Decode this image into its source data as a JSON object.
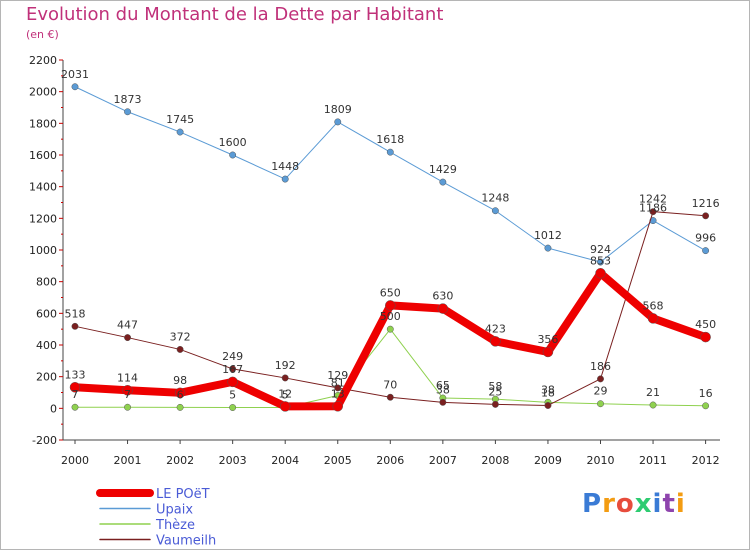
{
  "header": {
    "title": "Evolution du Montant de la Dette par Habitant",
    "subtitle": "(en €)"
  },
  "logo": {
    "text": "Proxiti"
  },
  "chart_data": {
    "type": "line",
    "title": "Evolution du Montant de la Dette par Habitant",
    "subtitle": "(en €)",
    "x": [
      "2000",
      "2001",
      "2002",
      "2003",
      "2004",
      "2005",
      "2006",
      "2007",
      "2008",
      "2009",
      "2010",
      "2011",
      "2012"
    ],
    "ylim": [
      -200,
      2200
    ],
    "yticks": [
      -200,
      0,
      200,
      400,
      600,
      800,
      1000,
      1200,
      1400,
      1600,
      1800,
      2000,
      2200
    ],
    "grid": false,
    "legend": "bottom-left",
    "series": [
      {
        "name": "LE POëT",
        "color": "#ee0000",
        "values": [
          133,
          114,
          98,
          167,
          12,
          13,
          650,
          630,
          423,
          356,
          853,
          568,
          450
        ]
      },
      {
        "name": "Upaix",
        "color": "#5b9bd5",
        "values": [
          2031,
          1873,
          1745,
          1600,
          1448,
          1809,
          1618,
          1429,
          1248,
          1012,
          924,
          1186,
          996
        ]
      },
      {
        "name": "Thèze",
        "color": "#8fd14f",
        "values": [
          7,
          7,
          6,
          5,
          5,
          81,
          500,
          65,
          58,
          38,
          29,
          21,
          16
        ]
      },
      {
        "name": "Vaumeilh",
        "color": "#7a2020",
        "values": [
          518,
          447,
          372,
          249,
          192,
          129,
          70,
          38,
          25,
          18,
          186,
          1242,
          1216
        ]
      }
    ]
  }
}
